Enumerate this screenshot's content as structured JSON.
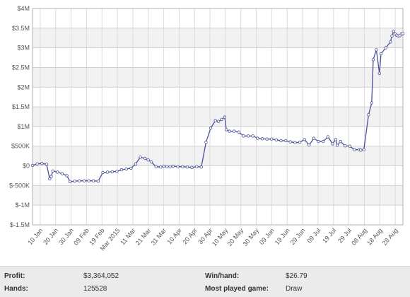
{
  "chart_data": {
    "type": "line",
    "y_tick_labels": [
      "$4M",
      "$3.5M",
      "$3M",
      "$2.5M",
      "$2M",
      "$1.5M",
      "$1M",
      "$500K",
      "$0",
      "$-500K",
      "$-1M",
      "$-1.5M"
    ],
    "y_ticks": [
      4000000,
      3500000,
      3000000,
      2500000,
      2000000,
      1500000,
      1000000,
      500000,
      0,
      -500000,
      -1000000,
      -1500000
    ],
    "ylim": [
      -1500000,
      4000000
    ],
    "x_tick_labels": [
      "10 Jan",
      "20 Jan",
      "30 Jan",
      "09 Feb",
      "19 Feb",
      "Mar 2015",
      "11 Mar",
      "21 Mar",
      "31 Mar",
      "10 Apr",
      "20 Apr",
      "30 Apr",
      "10 May",
      "20 May",
      "30 May",
      "09 Jun",
      "19 Jun",
      "29 Jun",
      "09 Jul",
      "19 Jul",
      "29 Jul",
      "08 Aug",
      "18 Aug",
      "28 Aug"
    ],
    "x_range_days": [
      0,
      237
    ],
    "grid": true,
    "line_color": "#4a4f96",
    "marker_fill": "#ffffff",
    "x": [
      0,
      3,
      6,
      9,
      11,
      12,
      13,
      16,
      19,
      22,
      24,
      27,
      30,
      33,
      36,
      39,
      42,
      45,
      48,
      51,
      54,
      57,
      60,
      63,
      66,
      69,
      72,
      74,
      76,
      79,
      82,
      84,
      86,
      88,
      90,
      93,
      96,
      99,
      102,
      105,
      108,
      111,
      114,
      117,
      119,
      121,
      123,
      124,
      126,
      129,
      132,
      135,
      138,
      141,
      144,
      147,
      150,
      153,
      156,
      159,
      162,
      165,
      168,
      171,
      174,
      177,
      180,
      183,
      186,
      189,
      192,
      194,
      195,
      197,
      200,
      203,
      206,
      209,
      210,
      212,
      215,
      217,
      218,
      220,
      222,
      223,
      226,
      229,
      230,
      231,
      232,
      233,
      234,
      235,
      236,
      237
    ],
    "values": [
      10000,
      50000,
      60000,
      40000,
      -330000,
      -270000,
      -130000,
      -160000,
      -200000,
      -250000,
      -400000,
      -390000,
      -380000,
      -380000,
      -380000,
      -380000,
      -390000,
      -170000,
      -160000,
      -150000,
      -140000,
      -100000,
      -80000,
      -60000,
      50000,
      220000,
      190000,
      150000,
      100000,
      -20000,
      -30000,
      -10000,
      -20000,
      -20000,
      -10000,
      -20000,
      -20000,
      -30000,
      -40000,
      -20000,
      -30000,
      600000,
      960000,
      1150000,
      1130000,
      1180000,
      1240000,
      920000,
      880000,
      880000,
      860000,
      760000,
      760000,
      760000,
      700000,
      690000,
      680000,
      680000,
      660000,
      640000,
      640000,
      610000,
      590000,
      600000,
      670000,
      530000,
      700000,
      620000,
      620000,
      740000,
      560000,
      670000,
      520000,
      620000,
      510000,
      500000,
      410000,
      410000,
      400000,
      410000,
      1300000,
      1600000,
      2700000,
      2950000,
      2350000,
      2850000,
      3000000,
      3150000,
      3300000,
      3420000,
      3350000,
      3320000,
      3300000,
      3310000,
      3350000,
      3364052
    ]
  },
  "stats": {
    "profit_label": "Profit:",
    "profit_value": "$3,364,052",
    "hands_label": "Hands:",
    "hands_value": "125528",
    "winhand_label": "Win/hand:",
    "winhand_value": "$26.79",
    "game_label": "Most played game:",
    "game_value": "Draw"
  }
}
